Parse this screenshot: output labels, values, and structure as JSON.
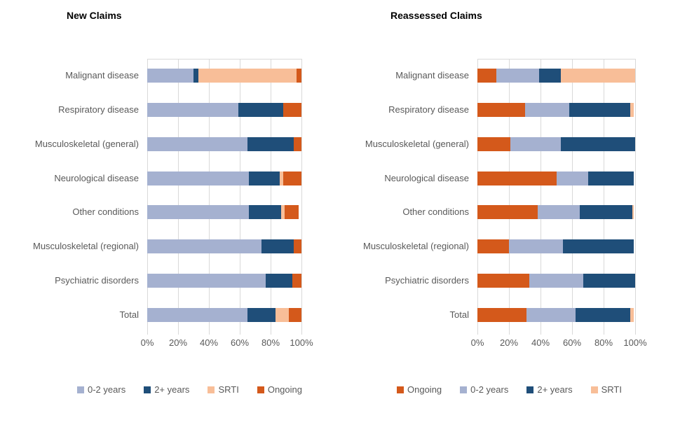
{
  "colors": {
    "zero_two_years": "#A5B1D0",
    "two_plus_years": "#1F4E79",
    "srti": "#F8BE98",
    "ongoing": "#D4591B",
    "gridline": "#D9D9D9",
    "axis_text": "#595959",
    "title_text": "#000000"
  },
  "chart_data": [
    {
      "type": "bar",
      "orientation": "horizontal",
      "stacked": true,
      "title": "New Claims",
      "xlabel": "",
      "ylabel": "",
      "xlim": [
        0,
        100
      ],
      "grid": true,
      "legend_position": "bottom",
      "x_ticks": [
        "0%",
        "20%",
        "40%",
        "60%",
        "80%",
        "100%"
      ],
      "categories": [
        "Malignant disease",
        "Respiratory disease",
        "Musculoskeletal (general)",
        "Neurological disease",
        "Other conditions",
        "Musculoskeletal (regional)",
        "Psychiatric disorders",
        "Total"
      ],
      "series": [
        {
          "name": "0-2 years",
          "color": "#A5B1D0",
          "values": [
            30,
            59,
            65,
            66,
            66,
            74,
            77,
            65
          ]
        },
        {
          "name": "2+ years",
          "color": "#1F4E79",
          "values": [
            3,
            29,
            30,
            20,
            21,
            21,
            17,
            18
          ]
        },
        {
          "name": "SRTI",
          "color": "#F8BE98",
          "values": [
            64,
            0,
            0,
            2,
            2,
            0,
            0,
            9
          ]
        },
        {
          "name": "Ongoing",
          "color": "#D4591B",
          "values": [
            3,
            12,
            5,
            12,
            9,
            5,
            6,
            8
          ]
        }
      ],
      "legend": [
        "0-2 years",
        "2+ years",
        "SRTI",
        "Ongoing"
      ]
    },
    {
      "type": "bar",
      "orientation": "horizontal",
      "stacked": true,
      "title": "Reassessed Claims",
      "xlabel": "",
      "ylabel": "",
      "xlim": [
        0,
        100
      ],
      "grid": true,
      "legend_position": "bottom",
      "x_ticks": [
        "0%",
        "20%",
        "40%",
        "60%",
        "80%",
        "100%"
      ],
      "categories": [
        "Malignant disease",
        "Respiratory disease",
        "Musculoskeletal (general)",
        "Neurological disease",
        "Other conditions",
        "Musculoskeletal (regional)",
        "Psychiatric disorders",
        "Total"
      ],
      "series": [
        {
          "name": "Ongoing",
          "color": "#D4591B",
          "values": [
            12,
            30,
            21,
            50,
            38,
            20,
            33,
            31
          ]
        },
        {
          "name": "0-2 years",
          "color": "#A5B1D0",
          "values": [
            27,
            28,
            32,
            20,
            27,
            34,
            34,
            31
          ]
        },
        {
          "name": "2+ years",
          "color": "#1F4E79",
          "values": [
            14,
            39,
            47,
            29,
            33,
            45,
            33,
            35
          ]
        },
        {
          "name": "SRTI",
          "color": "#F8BE98",
          "values": [
            47,
            2,
            0,
            0,
            1,
            0,
            0,
            2
          ]
        }
      ],
      "legend": [
        "Ongoing",
        "0-2 years",
        "2+ years",
        "SRTI"
      ]
    }
  ]
}
